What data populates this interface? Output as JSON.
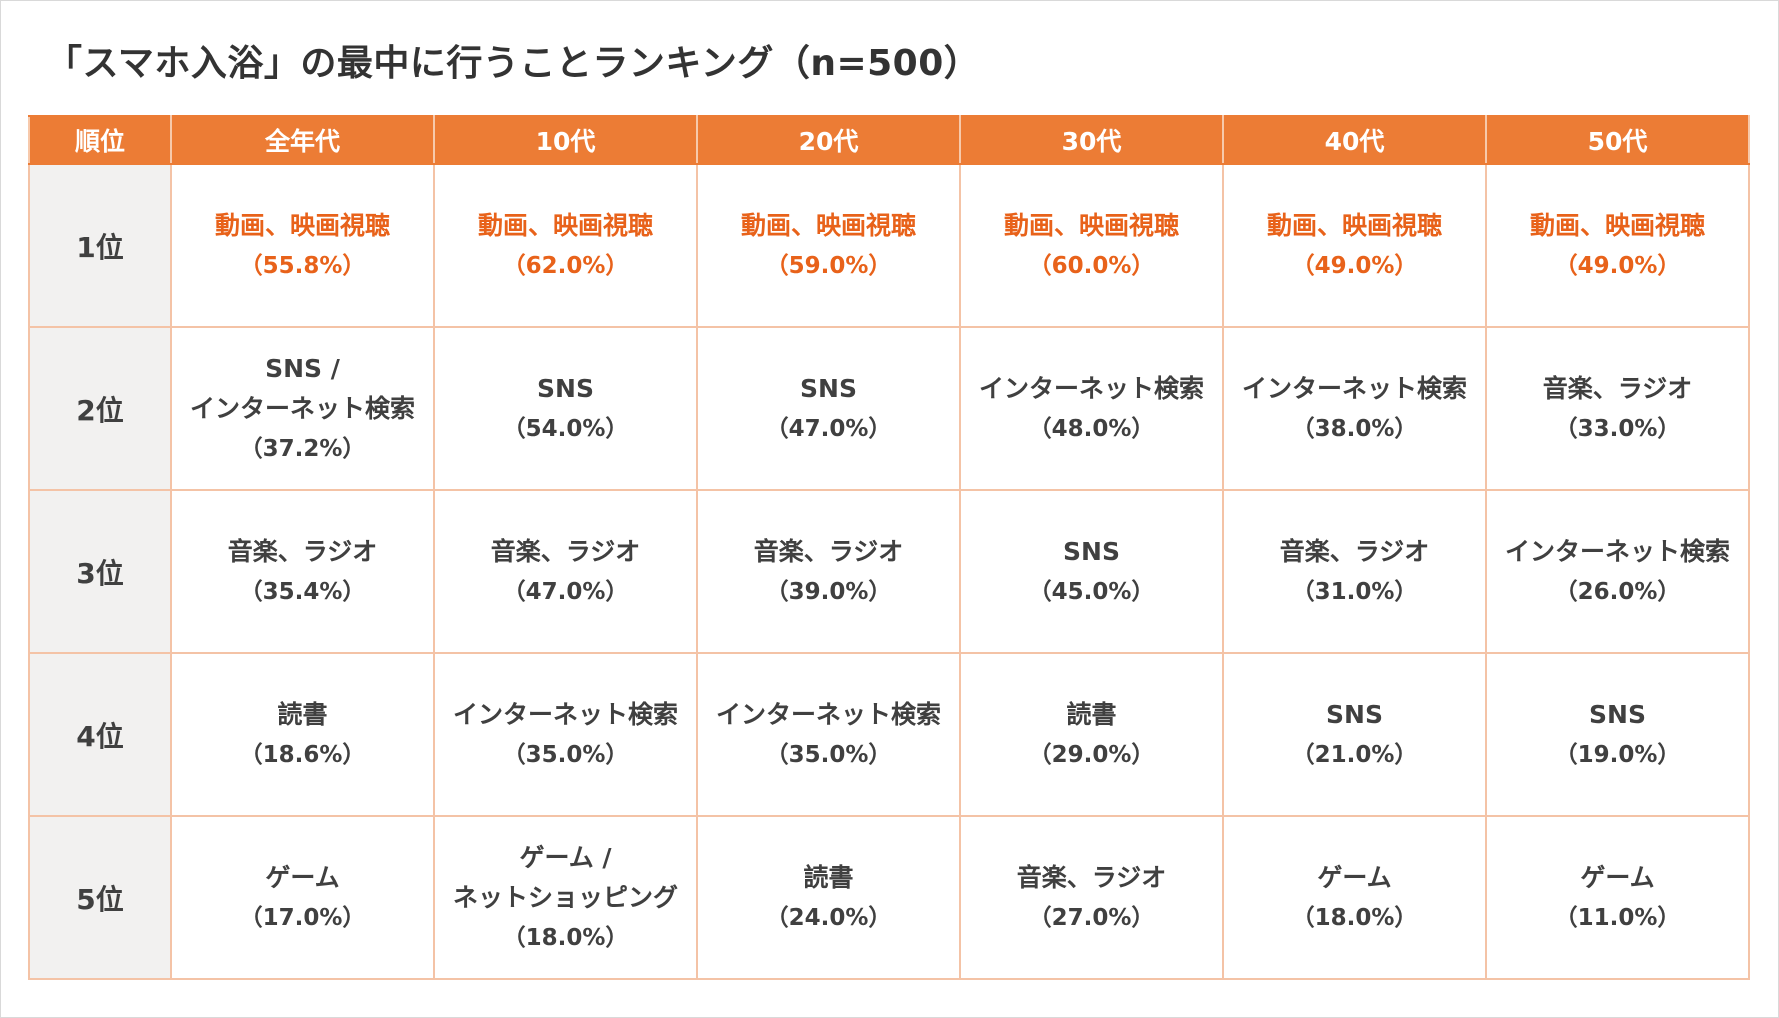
{
  "title": "「スマホ入浴」の最中に行うことランキング（n=500）",
  "colors": {
    "header_bg": "#ec7c35",
    "header_text": "#ffffff",
    "first_place_text": "#e8621a",
    "rank_column_bg": "#f2f1f0",
    "border": "#f4c3a6",
    "body_text": "#404040"
  },
  "chart_data": {
    "type": "table",
    "title": "「スマホ入浴」の最中に行うことランキング（n=500）",
    "n": 500,
    "columns": [
      "順位",
      "全年代",
      "10代",
      "20代",
      "30代",
      "40代",
      "50代"
    ],
    "rows": [
      {
        "rank": "1位",
        "cells": [
          {
            "item": "動画、映画視聴",
            "pct": "（55.8%）",
            "value": 55.8
          },
          {
            "item": "動画、映画視聴",
            "pct": "（62.0%）",
            "value": 62.0
          },
          {
            "item": "動画、映画視聴",
            "pct": "（59.0%）",
            "value": 59.0
          },
          {
            "item": "動画、映画視聴",
            "pct": "（60.0%）",
            "value": 60.0
          },
          {
            "item": "動画、映画視聴",
            "pct": "（49.0%）",
            "value": 49.0
          },
          {
            "item": "動画、映画視聴",
            "pct": "（49.0%）",
            "value": 49.0
          }
        ]
      },
      {
        "rank": "2位",
        "cells": [
          {
            "item": "SNS /",
            "item2": "インターネット検索",
            "pct": "（37.2%）",
            "value": 37.2
          },
          {
            "item": "SNS",
            "pct": "（54.0%）",
            "value": 54.0
          },
          {
            "item": "SNS",
            "pct": "（47.0%）",
            "value": 47.0
          },
          {
            "item": "インターネット検索",
            "pct": "（48.0%）",
            "value": 48.0
          },
          {
            "item": "インターネット検索",
            "pct": "（38.0%）",
            "value": 38.0
          },
          {
            "item": "音楽、ラジオ",
            "pct": "（33.0%）",
            "value": 33.0
          }
        ]
      },
      {
        "rank": "3位",
        "cells": [
          {
            "item": "音楽、ラジオ",
            "pct": "（35.4%）",
            "value": 35.4
          },
          {
            "item": "音楽、ラジオ",
            "pct": "（47.0%）",
            "value": 47.0
          },
          {
            "item": "音楽、ラジオ",
            "pct": "（39.0%）",
            "value": 39.0
          },
          {
            "item": "SNS",
            "pct": "（45.0%）",
            "value": 45.0
          },
          {
            "item": "音楽、ラジオ",
            "pct": "（31.0%）",
            "value": 31.0
          },
          {
            "item": "インターネット検索",
            "pct": "（26.0%）",
            "value": 26.0
          }
        ]
      },
      {
        "rank": "4位",
        "cells": [
          {
            "item": "読書",
            "pct": "（18.6%）",
            "value": 18.6
          },
          {
            "item": "インターネット検索",
            "pct": "（35.0%）",
            "value": 35.0
          },
          {
            "item": "インターネット検索",
            "pct": "（35.0%）",
            "value": 35.0
          },
          {
            "item": "読書",
            "pct": "（29.0%）",
            "value": 29.0
          },
          {
            "item": "SNS",
            "pct": "（21.0%）",
            "value": 21.0
          },
          {
            "item": "SNS",
            "pct": "（19.0%）",
            "value": 19.0
          }
        ]
      },
      {
        "rank": "5位",
        "cells": [
          {
            "item": "ゲーム",
            "pct": "（17.0%）",
            "value": 17.0
          },
          {
            "item": "ゲーム /",
            "item2": "ネットショッピング",
            "pct": "（18.0%）",
            "value": 18.0
          },
          {
            "item": "読書",
            "pct": "（24.0%）",
            "value": 24.0
          },
          {
            "item": "音楽、ラジオ",
            "pct": "（27.0%）",
            "value": 27.0
          },
          {
            "item": "ゲーム",
            "pct": "（18.0%）",
            "value": 18.0
          },
          {
            "item": "ゲーム",
            "pct": "（11.0%）",
            "value": 11.0
          }
        ]
      }
    ]
  }
}
